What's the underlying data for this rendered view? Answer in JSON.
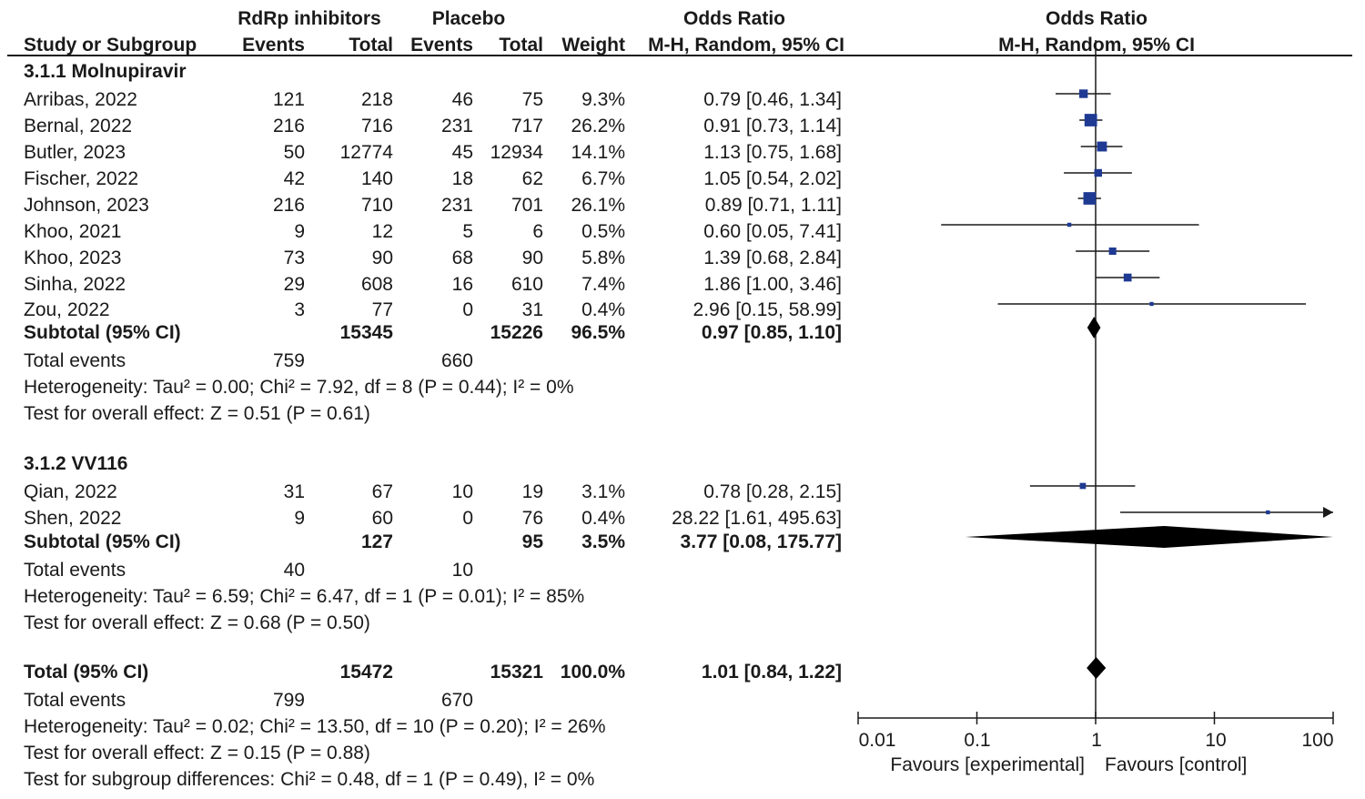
{
  "header": {
    "group_exp": "RdRp inhibitors",
    "group_ctl": "Placebo",
    "or_header": "Odds Ratio",
    "plot_header": "Odds Ratio",
    "col_study": "Study or Subgroup",
    "col_events_exp": "Events",
    "col_total_exp": "Total",
    "col_events_ctl": "Events",
    "col_total_ctl": "Total",
    "col_weight": "Weight",
    "col_method": "M-H, Random, 95% CI",
    "plot_method": "M-H, Random, 95% CI"
  },
  "subgroups": [
    {
      "title": "3.1.1 Molnupiravir",
      "studies": [
        {
          "study": "Arribas, 2022",
          "events_exp": "121",
          "total_exp": "218",
          "events_ctl": "46",
          "total_ctl": "75",
          "weight": "9.3%",
          "ci_text": "0.79 [0.46, 1.34]"
        },
        {
          "study": "Bernal, 2022",
          "events_exp": "216",
          "total_exp": "716",
          "events_ctl": "231",
          "total_ctl": "717",
          "weight": "26.2%",
          "ci_text": "0.91 [0.73, 1.14]"
        },
        {
          "study": "Butler, 2023",
          "events_exp": "50",
          "total_exp": "12774",
          "events_ctl": "45",
          "total_ctl": "12934",
          "weight": "14.1%",
          "ci_text": "1.13 [0.75, 1.68]"
        },
        {
          "study": "Fischer, 2022",
          "events_exp": "42",
          "total_exp": "140",
          "events_ctl": "18",
          "total_ctl": "62",
          "weight": "6.7%",
          "ci_text": "1.05 [0.54, 2.02]"
        },
        {
          "study": "Johnson, 2023",
          "events_exp": "216",
          "total_exp": "710",
          "events_ctl": "231",
          "total_ctl": "701",
          "weight": "26.1%",
          "ci_text": "0.89 [0.71, 1.11]"
        },
        {
          "study": "Khoo, 2021",
          "events_exp": "9",
          "total_exp": "12",
          "events_ctl": "5",
          "total_ctl": "6",
          "weight": "0.5%",
          "ci_text": "0.60 [0.05, 7.41]"
        },
        {
          "study": "Khoo, 2023",
          "events_exp": "73",
          "total_exp": "90",
          "events_ctl": "68",
          "total_ctl": "90",
          "weight": "5.8%",
          "ci_text": "1.39 [0.68, 2.84]"
        },
        {
          "study": "Sinha, 2022",
          "events_exp": "29",
          "total_exp": "608",
          "events_ctl": "16",
          "total_ctl": "610",
          "weight": "7.4%",
          "ci_text": "1.86 [1.00, 3.46]"
        },
        {
          "study": "Zou, 2022",
          "events_exp": "3",
          "total_exp": "77",
          "events_ctl": "0",
          "total_ctl": "31",
          "weight": "0.4%",
          "ci_text": "2.96 [0.15, 58.99]"
        }
      ],
      "subtotal": {
        "label": "Subtotal (95% CI)",
        "total_exp": "15345",
        "total_ctl": "15226",
        "weight": "96.5%",
        "ci_text": "0.97 [0.85, 1.10]"
      },
      "total_events": {
        "label": "Total events",
        "exp": "759",
        "ctl": "660"
      },
      "heterogeneity": "Heterogeneity: Tau² = 0.00; Chi² = 7.92, df = 8 (P = 0.44); I² = 0%",
      "overall_effect": "Test for overall effect: Z = 0.51 (P = 0.61)"
    },
    {
      "title": "3.1.2 VV116",
      "studies": [
        {
          "study": "Qian, 2022",
          "events_exp": "31",
          "total_exp": "67",
          "events_ctl": "10",
          "total_ctl": "19",
          "weight": "3.1%",
          "ci_text": "0.78 [0.28, 2.15]"
        },
        {
          "study": "Shen, 2022",
          "events_exp": "9",
          "total_exp": "60",
          "events_ctl": "0",
          "total_ctl": "76",
          "weight": "0.4%",
          "ci_text": "28.22 [1.61, 495.63]"
        }
      ],
      "subtotal": {
        "label": "Subtotal (95% CI)",
        "total_exp": "127",
        "total_ctl": "95",
        "weight": "3.5%",
        "ci_text": "3.77 [0.08, 175.77]"
      },
      "total_events": {
        "label": "Total events",
        "exp": "40",
        "ctl": "10"
      },
      "heterogeneity": "Heterogeneity: Tau² = 6.59; Chi² = 6.47, df = 1 (P = 0.01); I² = 85%",
      "overall_effect": "Test for overall effect: Z = 0.68 (P = 0.50)"
    }
  ],
  "total": {
    "label": "Total (95% CI)",
    "total_exp": "15472",
    "total_ctl": "15321",
    "weight": "100.0%",
    "ci_text": "1.01 [0.84, 1.22]",
    "total_events": {
      "label": "Total events",
      "exp": "799",
      "ctl": "670"
    },
    "heterogeneity": "Heterogeneity: Tau² = 0.02; Chi² = 13.50, df = 10 (P = 0.20); I² = 26%",
    "overall_effect": "Test for overall effect: Z = 0.15 (P = 0.88)",
    "subgroup_diff": "Test for subgroup differences: Chi² = 0.48, df = 1 (P = 0.49), I² = 0%"
  },
  "axis": {
    "ticks": [
      "0.01",
      "0.1",
      "1",
      "10",
      "100"
    ],
    "favours_left": "Favours [experimental]",
    "favours_right": "Favours [control]"
  },
  "colors": {
    "square": "#1f3a93",
    "diamond": "#000000",
    "line": "#1a1a1a"
  },
  "chart_data": {
    "type": "forest",
    "scale": "log",
    "xlim": [
      0.01,
      100
    ],
    "reference_line": 1,
    "studies": [
      {
        "name": "Arribas, 2022",
        "or": 0.79,
        "lo": 0.46,
        "hi": 1.34,
        "weight": 9.3
      },
      {
        "name": "Bernal, 2022",
        "or": 0.91,
        "lo": 0.73,
        "hi": 1.14,
        "weight": 26.2
      },
      {
        "name": "Butler, 2023",
        "or": 1.13,
        "lo": 0.75,
        "hi": 1.68,
        "weight": 14.1
      },
      {
        "name": "Fischer, 2022",
        "or": 1.05,
        "lo": 0.54,
        "hi": 2.02,
        "weight": 6.7
      },
      {
        "name": "Johnson, 2023",
        "or": 0.89,
        "lo": 0.71,
        "hi": 1.11,
        "weight": 26.1
      },
      {
        "name": "Khoo, 2021",
        "or": 0.6,
        "lo": 0.05,
        "hi": 7.41,
        "weight": 0.5
      },
      {
        "name": "Khoo, 2023",
        "or": 1.39,
        "lo": 0.68,
        "hi": 2.84,
        "weight": 5.8
      },
      {
        "name": "Sinha, 2022",
        "or": 1.86,
        "lo": 1.0,
        "hi": 3.46,
        "weight": 7.4
      },
      {
        "name": "Zou, 2022",
        "or": 2.96,
        "lo": 0.15,
        "hi": 58.99,
        "weight": 0.4
      },
      {
        "name": "Qian, 2022",
        "or": 0.78,
        "lo": 0.28,
        "hi": 2.15,
        "weight": 3.1
      },
      {
        "name": "Shen, 2022",
        "or": 28.22,
        "lo": 1.61,
        "hi": 495.63,
        "weight": 0.4
      }
    ],
    "summaries": [
      {
        "name": "Subtotal 3.1.1",
        "or": 0.97,
        "lo": 0.85,
        "hi": 1.1
      },
      {
        "name": "Subtotal 3.1.2",
        "or": 3.77,
        "lo": 0.08,
        "hi": 175.77
      },
      {
        "name": "Total",
        "or": 1.01,
        "lo": 0.84,
        "hi": 1.22
      }
    ]
  }
}
